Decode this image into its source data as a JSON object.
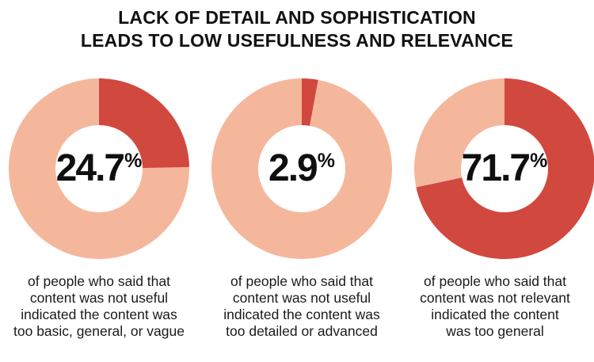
{
  "title": {
    "line1": "LACK OF DETAIL AND SOPHISTICATION",
    "line2": "LEADS TO LOW USEFULNESS AND RELEVANCE"
  },
  "colors": {
    "highlight": "#d1483f",
    "remainder": "#f5b79c",
    "hole": "#ffffff"
  },
  "chart_data": {
    "type": "pie",
    "title": "LACK OF DETAIL AND SOPHISTICATION LEADS TO LOW USEFULNESS AND RELEVANCE",
    "series": [
      {
        "name": "too basic, general, or vague",
        "value": 24.7,
        "value_label": "24.7",
        "unit": "%",
        "caption": [
          "of people who said that",
          "content was not useful",
          "indicated the content was",
          "too basic, general, or vague"
        ]
      },
      {
        "name": "too detailed or advanced",
        "value": 2.9,
        "value_label": "2.9",
        "unit": "%",
        "caption": [
          "of people who said that",
          "content was not useful",
          "indicated the content was",
          "too detailed or advanced"
        ]
      },
      {
        "name": "too general",
        "value": 71.7,
        "value_label": "71.7",
        "unit": "%",
        "caption": [
          "of people who said that",
          "content was not relevant",
          "indicated the content",
          "was too general"
        ]
      }
    ]
  }
}
